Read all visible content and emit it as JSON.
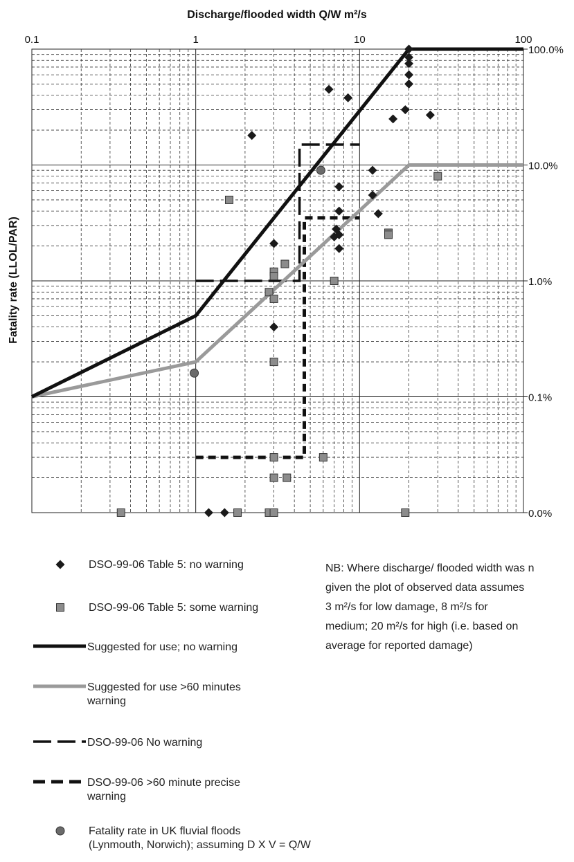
{
  "chart_data": {
    "type": "line+scatter",
    "title": "Discharge/flooded width Q/W m²/s",
    "xlabel": "Discharge/flooded width Q/W m²/s",
    "ylabel": "Fatality rate (LLOL/PAR)",
    "x_scale": "log",
    "y_scale": "log",
    "xlim": [
      0.1,
      100
    ],
    "ylim": [
      0.0001,
      1
    ],
    "x_ticks": [
      {
        "value": 0.1,
        "label": "0.1"
      },
      {
        "value": 1,
        "label": "1"
      },
      {
        "value": 10,
        "label": "10"
      },
      {
        "value": 100,
        "label": "100"
      }
    ],
    "y_ticks": [
      {
        "value": 1,
        "label": "100.0%"
      },
      {
        "value": 0.1,
        "label": "10.0%"
      },
      {
        "value": 0.01,
        "label": "1.0%"
      },
      {
        "value": 0.001,
        "label": "0.1%"
      },
      {
        "value": 0.0001,
        "label": "0.0%"
      }
    ],
    "grid": true,
    "series": [
      {
        "name": "Suggested for use; no warning",
        "style": "solid",
        "color": "#111111",
        "points": [
          [
            0.1,
            0.001
          ],
          [
            1,
            0.005
          ],
          [
            20,
            1
          ],
          [
            100,
            1
          ]
        ]
      },
      {
        "name": "Suggested for use >60 minutes warning",
        "style": "solid",
        "color": "#999999",
        "points": [
          [
            0.1,
            0.001
          ],
          [
            1,
            0.002
          ],
          [
            20,
            0.1
          ],
          [
            100,
            0.1
          ]
        ]
      },
      {
        "name": "DSO-99-06 No warning",
        "style": "longdash",
        "color": "#111111",
        "points": [
          [
            1,
            0.01
          ],
          [
            4.3,
            0.01
          ],
          [
            4.3,
            0.15
          ],
          [
            10,
            0.15
          ]
        ]
      },
      {
        "name": "DSO-99-06 >60 minute precise warning",
        "style": "shortdash",
        "color": "#111111",
        "points": [
          [
            1,
            0.0003
          ],
          [
            4.6,
            0.0003
          ],
          [
            4.6,
            0.035
          ],
          [
            10,
            0.035
          ]
        ]
      },
      {
        "name": "DSO-99-06 Table 5: no warning",
        "marker": "diamond",
        "color": "#1a1a1a",
        "points": [
          [
            20,
            1.0
          ],
          [
            20,
            0.85
          ],
          [
            20,
            0.75
          ],
          [
            20,
            0.6
          ],
          [
            20,
            0.5
          ],
          [
            6.5,
            0.45
          ],
          [
            8.5,
            0.38
          ],
          [
            19,
            0.3
          ],
          [
            16,
            0.25
          ],
          [
            27,
            0.27
          ],
          [
            2.2,
            0.18
          ],
          [
            12,
            0.09
          ],
          [
            7.5,
            0.065
          ],
          [
            12,
            0.055
          ],
          [
            7.5,
            0.04
          ],
          [
            13,
            0.038
          ],
          [
            7.2,
            0.028
          ],
          [
            7.5,
            0.025
          ],
          [
            7,
            0.024
          ],
          [
            3,
            0.021
          ],
          [
            7.5,
            0.019
          ],
          [
            3,
            0.004
          ],
          [
            1.2,
            0.0001
          ],
          [
            1.5,
            0.0001
          ]
        ]
      },
      {
        "name": "DSO-99-06 Table 5: some warning",
        "marker": "square",
        "color": "#8c8c8c",
        "points": [
          [
            30,
            0.08
          ],
          [
            1.6,
            0.05
          ],
          [
            15,
            0.026
          ],
          [
            15,
            0.025
          ],
          [
            3.5,
            0.014
          ],
          [
            3,
            0.012
          ],
          [
            3,
            0.011
          ],
          [
            7,
            0.01
          ],
          [
            2.8,
            0.008
          ],
          [
            3,
            0.007
          ],
          [
            3,
            0.002
          ],
          [
            3,
            0.0003
          ],
          [
            6,
            0.0003
          ],
          [
            3,
            0.0002
          ],
          [
            3.6,
            0.0002
          ],
          [
            0.35,
            0.0001
          ],
          [
            1.8,
            0.0001
          ],
          [
            2.8,
            0.0001
          ],
          [
            3,
            0.0001
          ],
          [
            19,
            0.0001
          ]
        ]
      },
      {
        "name": "Fatality rate in UK fluvial floods (Lynmouth, Norwich); assuming D X V = Q/W",
        "marker": "circle",
        "color": "#6b6b6b",
        "points": [
          [
            5.8,
            0.09
          ],
          [
            0.98,
            0.0016
          ]
        ]
      }
    ]
  },
  "legend": {
    "items": [
      {
        "key": "diamond",
        "line1": "DSO-99-06 Table 5: no warning",
        "line2": ""
      },
      {
        "key": "square",
        "line1": "DSO-99-06 Table 5: some warning",
        "line2": ""
      },
      {
        "key": "black",
        "line1": "Suggested for use; no warning",
        "line2": ""
      },
      {
        "key": "grey",
        "line1": "Suggested for use >60 minutes",
        "line2": "warning"
      },
      {
        "key": "longdash",
        "line1": "DSO-99-06 No warning",
        "line2": ""
      },
      {
        "key": "shortdash",
        "line1": "DSO-99-06 >60 minute precise",
        "line2": "warning"
      },
      {
        "key": "circle",
        "line1": "Fatality rate in UK fluvial floods",
        "line2": "(Lynmouth, Norwich); assuming D X V = Q/W"
      }
    ]
  },
  "note": {
    "line1": "NB: Where discharge/ flooded width was n",
    "line2": "given the plot of observed data assumes",
    "line3": "3 m²/s for low damage, 8 m²/s for",
    "line4": "medium; 20 m²/s for high (i.e. based on",
    "line5": "average for reported damage)"
  }
}
